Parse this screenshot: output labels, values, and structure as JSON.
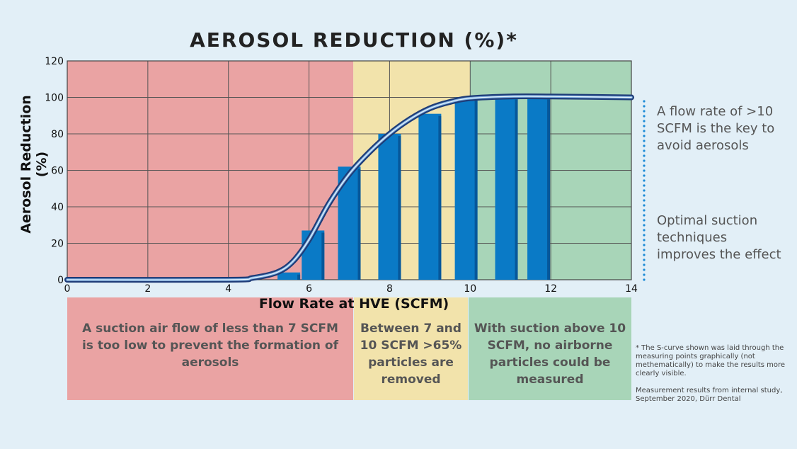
{
  "chart_data": {
    "type": "bar",
    "title": "AEROSOL REDUCTION (%)*",
    "xlabel": "Flow Rate at HVE (SCFM)",
    "ylabel": "Aerosol Reduction (%)",
    "xlim": [
      0,
      14
    ],
    "ylim": [
      0,
      120
    ],
    "x_ticks": [
      0,
      2,
      4,
      6,
      8,
      10,
      12,
      14
    ],
    "y_ticks": [
      0,
      20,
      40,
      60,
      80,
      100,
      120
    ],
    "grid": true,
    "bars": {
      "x": [
        5.5,
        6.1,
        7.0,
        8.0,
        9.0,
        9.9,
        10.9,
        11.7
      ],
      "values": [
        4,
        27,
        62,
        80,
        91,
        100,
        100,
        100
      ],
      "color": "#0a7ac6"
    },
    "curve": {
      "x": [
        0,
        4,
        4.6,
        5.2,
        5.6,
        6.0,
        6.5,
        7.0,
        7.5,
        8.0,
        8.5,
        9.0,
        9.5,
        10.0,
        11.0,
        12.0,
        14.0
      ],
      "y": [
        0,
        0,
        1,
        4,
        10,
        22,
        42,
        58,
        70,
        80,
        88,
        94,
        97.5,
        99.5,
        100.5,
        100.5,
        100
      ],
      "color": "#1e3c78"
    },
    "zones": [
      {
        "from": 0,
        "to": 7.1,
        "color": "#eaa3a3"
      },
      {
        "from": 7.1,
        "to": 10,
        "color": "#f2e3ab"
      },
      {
        "from": 10,
        "to": 14,
        "color": "#a8d5b8"
      }
    ]
  },
  "zone_texts": {
    "red": "A suction air flow of less than 7 SCFM is too low to prevent the formation of aerosols",
    "yellow": "Between 7 and 10 SCFM >65% particles are removed",
    "green": "With suction above 10 SCFM, no airborne particles could be measured"
  },
  "side_notes": {
    "note1": "A flow rate of >10 SCFM is the key to avoid aerosols",
    "note2": "Optimal suction techniques improves the effect"
  },
  "footnotes": {
    "f1": "* The S-curve shown was laid through the measuring points graphically (not methematically) to make the results more clearly visible.",
    "f2": "Measurement results from internal study, September 2020, Dürr Dental"
  }
}
